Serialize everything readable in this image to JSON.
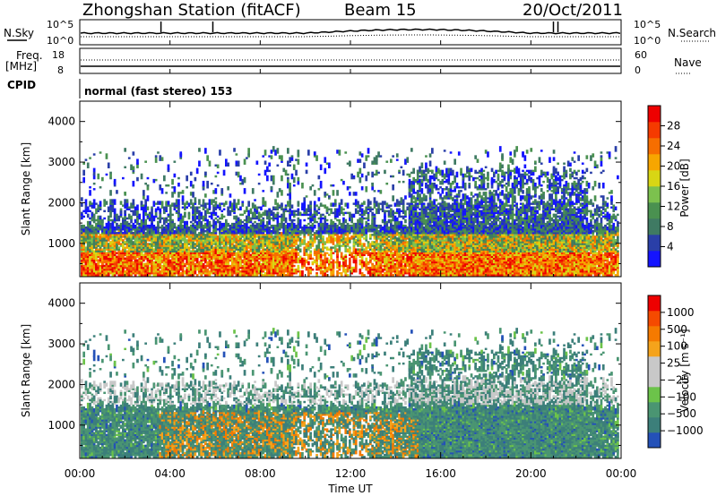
{
  "header": {
    "station": "Zhongshan Station (fitACF)",
    "beam": "Beam 15",
    "date": "20/Oct/2011"
  },
  "control": {
    "nsky_label": "N.Sky",
    "nsearch_label": "N.Search",
    "freq_label_1": "Freq.",
    "freq_label_2": "[MHz]",
    "nave_label": "Nave",
    "cpid_label": "CPID",
    "cpid_text": "normal (fast stereo) 153",
    "noise_ticks": [
      "10^5",
      "10^0"
    ],
    "freq_ticks": [
      "18",
      "8"
    ],
    "nave_ticks": [
      "60",
      "0"
    ]
  },
  "colorbars": {
    "power": {
      "label": "Power [dB]",
      "colors": [
        "#1414ff",
        "#2a3fa8",
        "#3f7a63",
        "#4a9150",
        "#7cc14e",
        "#d8d614",
        "#f7a600",
        "#f66e00",
        "#f53a00",
        "#ee0000"
      ],
      "ticks": [
        "28",
        "24",
        "20",
        "16",
        "12",
        "8",
        "4"
      ]
    },
    "velocity": {
      "label": "Velocity [m s⁻¹]",
      "colors": [
        "#2451b8",
        "#3c7f7a",
        "#4a9572",
        "#6cc34a",
        "#c8c8c8",
        "#c8c8c8",
        "#f5a31b",
        "#f57a00",
        "#f54a00",
        "#ee0000"
      ],
      "ticks": [
        "1000",
        "500",
        "100",
        "25",
        "−25",
        "−100",
        "−500",
        "−1000"
      ]
    }
  },
  "chart_data": [
    {
      "type": "heatmap",
      "name": "power",
      "ylabel": "Slant Range [km]",
      "xlabel": "",
      "ylim": [
        180,
        4500
      ],
      "xlim_hours": [
        0,
        24
      ],
      "y_ticks": [
        1000,
        2000,
        3000,
        4000
      ],
      "colorbar": "Power [dB]",
      "color_range_db": [
        0,
        30
      ]
    },
    {
      "type": "heatmap",
      "name": "velocity",
      "ylabel": "Slant Range [km]",
      "xlabel": "Time UT",
      "ylim": [
        180,
        4500
      ],
      "xlim_hours": [
        0,
        24
      ],
      "y_ticks": [
        1000,
        2000,
        3000,
        4000
      ],
      "x_ticks": [
        "00:00",
        "04:00",
        "08:00",
        "12:00",
        "16:00",
        "20:00",
        "00:00"
      ],
      "colorbar": "Velocity [m s⁻¹]",
      "color_range": [
        -1000,
        1000
      ]
    }
  ]
}
